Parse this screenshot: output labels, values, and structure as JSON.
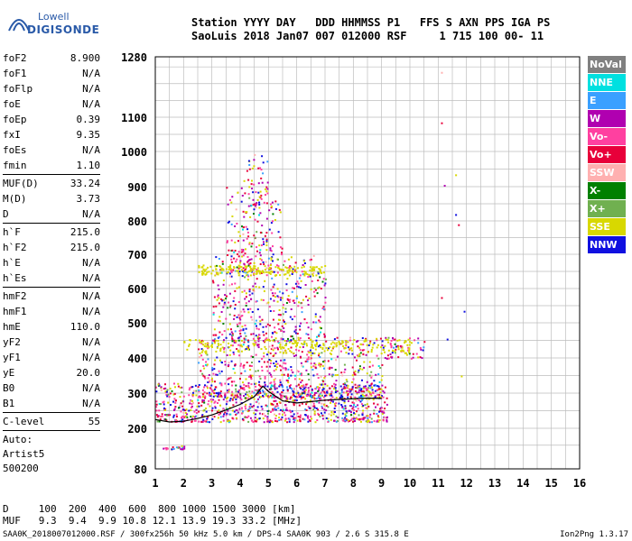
{
  "logo": {
    "line1": "Lowell",
    "line2": "DIGISONDE"
  },
  "header": {
    "line1": "Station YYYY DAY   DDD HHMMSS P1   FFS S AXN PPS IGA PS",
    "line2": "SaoLuis 2018 Jan07 007 012000 RSF     1 715 100 00- 11"
  },
  "params": [
    {
      "label": "foF2",
      "value": "8.900"
    },
    {
      "label": "foF1",
      "value": "N/A"
    },
    {
      "label": "foFlp",
      "value": "N/A"
    },
    {
      "label": "foE",
      "value": "N/A"
    },
    {
      "label": "foEp",
      "value": "0.39"
    },
    {
      "label": "fxI",
      "value": "9.35"
    },
    {
      "label": "foEs",
      "value": "N/A"
    },
    {
      "label": "fmin",
      "value": "1.10",
      "sep": true
    },
    {
      "label": "MUF(D)",
      "value": "33.24"
    },
    {
      "label": "M(D)",
      "value": "3.73"
    },
    {
      "label": "D",
      "value": "N/A",
      "sep": true
    },
    {
      "label": "h`F",
      "value": "215.0"
    },
    {
      "label": "h`F2",
      "value": "215.0"
    },
    {
      "label": "h`E",
      "value": "N/A"
    },
    {
      "label": "h`Es",
      "value": "N/A",
      "sep": true
    },
    {
      "label": "hmF2",
      "value": "N/A"
    },
    {
      "label": "hmF1",
      "value": "N/A"
    },
    {
      "label": "hmE",
      "value": "110.0"
    },
    {
      "label": "yF2",
      "value": "N/A"
    },
    {
      "label": "yF1",
      "value": "N/A"
    },
    {
      "label": "yE",
      "value": "20.0"
    },
    {
      "label": "B0",
      "value": "N/A"
    },
    {
      "label": "B1",
      "value": "N/A",
      "sep": true
    },
    {
      "label": "C-level",
      "value": "55",
      "sep": true
    }
  ],
  "auto": [
    "Auto:",
    "Artist5",
    "500200"
  ],
  "legend": [
    {
      "name": "NoVal",
      "color": "#808080"
    },
    {
      "name": "NNE",
      "color": "#00e0e0"
    },
    {
      "name": "E",
      "color": "#3aa0ff"
    },
    {
      "name": "W",
      "color": "#b000b0"
    },
    {
      "name": "Vo-",
      "color": "#ff40a0"
    },
    {
      "name": "Vo+",
      "color": "#e8003a"
    },
    {
      "name": "SSW",
      "color": "#ffb0b0"
    },
    {
      "name": "X-",
      "color": "#008000"
    },
    {
      "name": "X+",
      "color": "#70b050"
    },
    {
      "name": "SSE",
      "color": "#d8d800"
    },
    {
      "name": "NNW",
      "color": "#1010e0"
    }
  ],
  "chart_data": {
    "type": "scatter",
    "xlim": [
      1,
      16
    ],
    "ylim": [
      80,
      1280
    ],
    "x_ticks": [
      "1",
      "2",
      "3",
      "4",
      "5",
      "6",
      "7",
      "8",
      "9",
      "10",
      "11",
      "12",
      "13",
      "14",
      "15",
      "16"
    ],
    "y_ticks": [
      "80",
      "200",
      "300",
      "400",
      "500",
      "600",
      "700",
      "800",
      "900",
      "1000",
      "1100",
      "1280"
    ],
    "grid": true,
    "trace": [
      [
        1.0,
        225
      ],
      [
        1.5,
        218
      ],
      [
        2.0,
        220
      ],
      [
        2.5,
        228
      ],
      [
        3.0,
        238
      ],
      [
        3.5,
        252
      ],
      [
        4.0,
        268
      ],
      [
        4.5,
        290
      ],
      [
        4.8,
        320
      ],
      [
        5.0,
        305
      ],
      [
        5.5,
        278
      ],
      [
        6.0,
        272
      ],
      [
        6.5,
        276
      ],
      [
        7.0,
        280
      ],
      [
        7.5,
        282
      ],
      [
        8.0,
        284
      ],
      [
        8.5,
        286
      ],
      [
        9.0,
        285
      ]
    ]
  },
  "muf": {
    "line1": "D     100  200  400  600  800 1000 1500 3000 [km]",
    "line2": "MUF   9.3  9.4  9.9 10.8 12.1 13.9 19.3 33.2 [MHz]"
  },
  "footer": "SAA0K_2018007012000.RSF / 300fx256h 50 kHz 5.0 km / DPS-4 SAA0K 903 / 2.6 S 315.8 E",
  "ion": "Ion2Png 1.3.17"
}
